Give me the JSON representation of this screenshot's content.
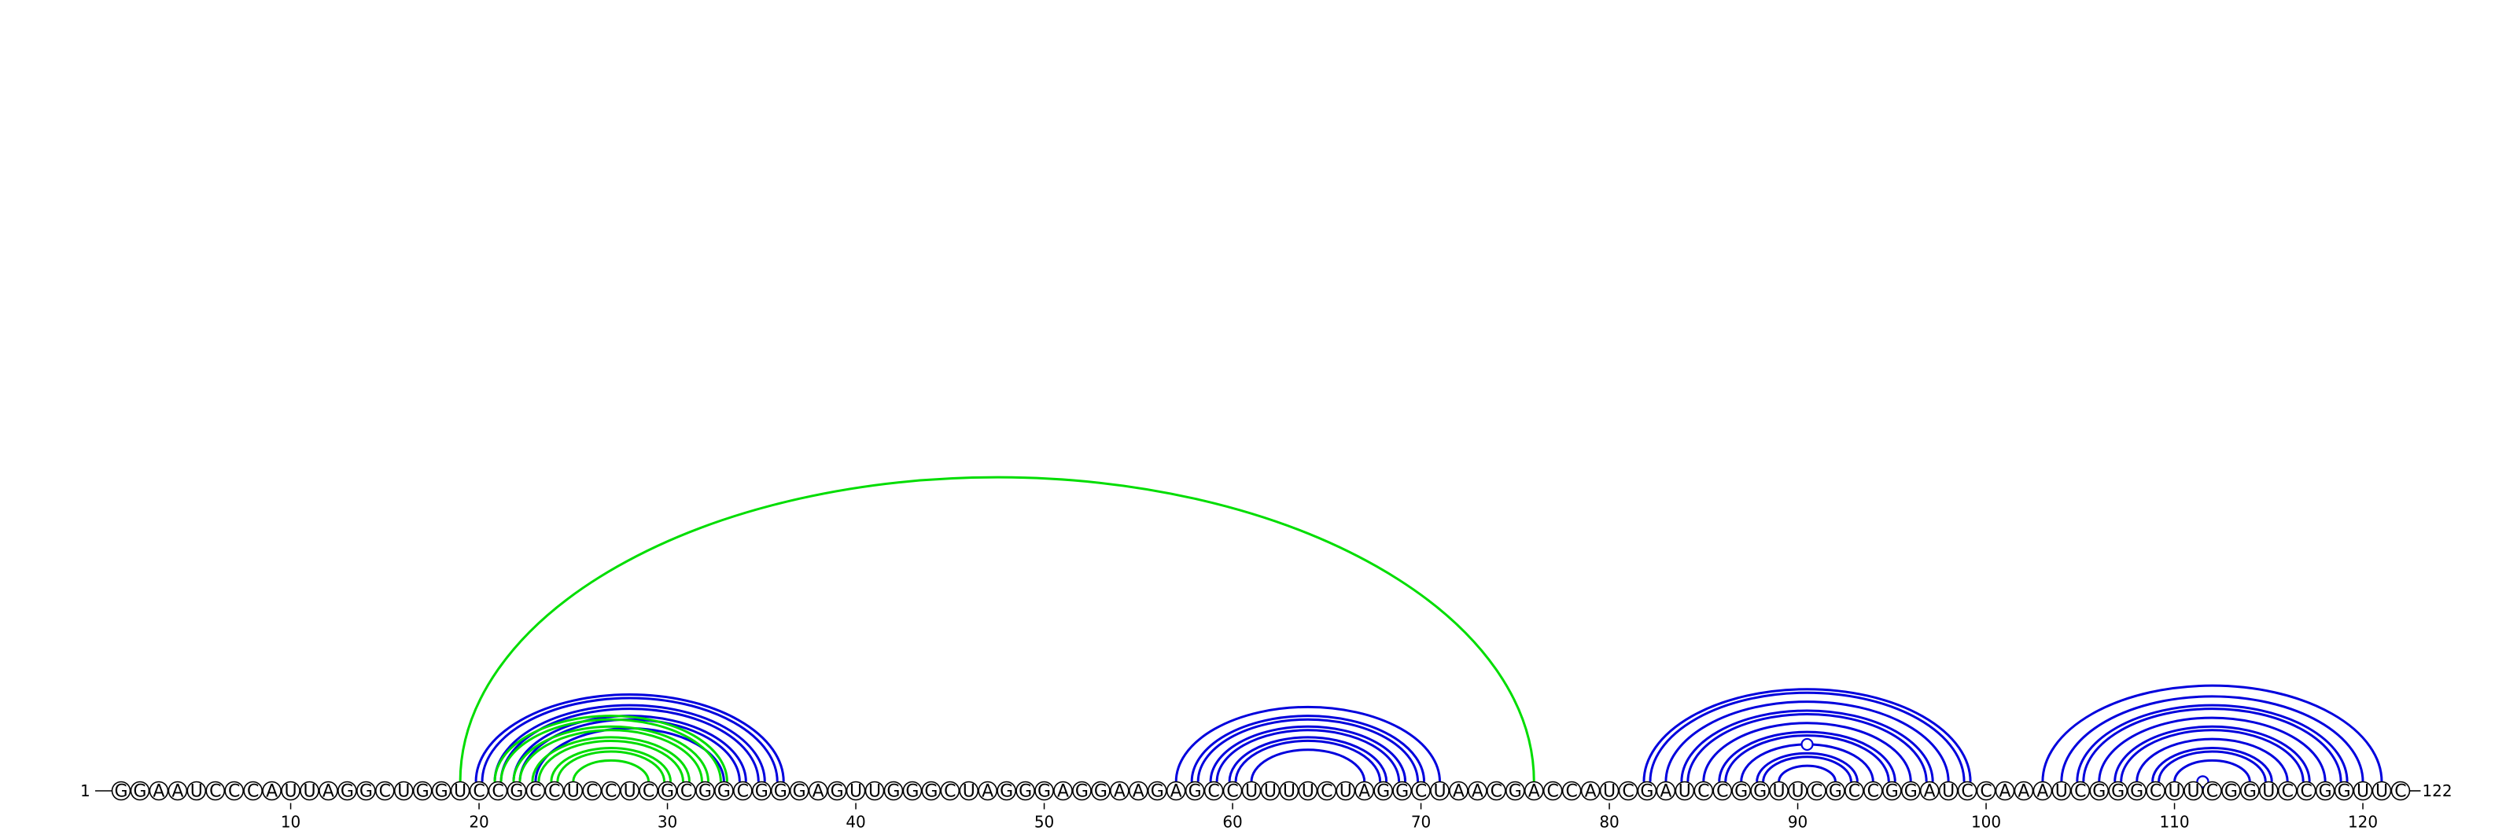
{
  "sequence": "GGAAUCCCAUUAGGCUGGUCCGCCUCCUCGCGGCGGGAGUUGGGCUAGGGAGGAAGAGCCUUUUCUAGGCUAACGACCAUCGAUCCGGUUCGCCGGAUCCAAAUCGGGCUUCGGUCCGGUUC",
  "start_label": "1",
  "end_label": "122",
  "tick_labels": [
    "10",
    "20",
    "30",
    "40",
    "50",
    "60",
    "70",
    "80",
    "90",
    "100",
    "110",
    "120"
  ],
  "colors": {
    "blue": "#0000dd",
    "green": "#00dd00"
  },
  "arcs": [
    {
      "i": 20,
      "j": 36,
      "color": "blue",
      "double": true
    },
    {
      "i": 21,
      "j": 35,
      "color": "blue",
      "double": true
    },
    {
      "i": 22,
      "j": 34,
      "color": "blue",
      "double": true
    },
    {
      "i": 23,
      "j": 33,
      "color": "blue",
      "double": false
    },
    {
      "i": 19,
      "j": 76,
      "color": "green",
      "double": false
    },
    {
      "i": 21,
      "j": 33,
      "color": "green",
      "double": true
    },
    {
      "i": 22,
      "j": 32,
      "color": "green",
      "double": true
    },
    {
      "i": 23,
      "j": 31,
      "color": "green",
      "double": true
    },
    {
      "i": 24,
      "j": 30,
      "color": "green",
      "double": true
    },
    {
      "i": 25,
      "j": 29,
      "color": "green",
      "double": false
    },
    {
      "i": 57,
      "j": 71,
      "color": "blue",
      "double": false
    },
    {
      "i": 58,
      "j": 70,
      "color": "blue",
      "double": true
    },
    {
      "i": 59,
      "j": 69,
      "color": "blue",
      "double": true
    },
    {
      "i": 60,
      "j": 68,
      "color": "blue",
      "double": true
    },
    {
      "i": 61,
      "j": 67,
      "color": "blue",
      "double": false
    },
    {
      "i": 82,
      "j": 99,
      "color": "blue",
      "double": true
    },
    {
      "i": 83,
      "j": 98,
      "color": "blue",
      "double": false
    },
    {
      "i": 84,
      "j": 97,
      "color": "blue",
      "double": true
    },
    {
      "i": 85,
      "j": 96,
      "color": "blue",
      "double": false
    },
    {
      "i": 86,
      "j": 95,
      "color": "blue",
      "double": true
    },
    {
      "i": 87,
      "j": 94,
      "color": "blue",
      "double": false
    },
    {
      "i": 88,
      "j": 93,
      "color": "blue",
      "double": true
    },
    {
      "i": 89,
      "j": 92,
      "color": "blue",
      "double": false
    },
    {
      "i": 103,
      "j": 121,
      "color": "blue",
      "double": false
    },
    {
      "i": 104,
      "j": 120,
      "color": "blue",
      "double": false
    },
    {
      "i": 105,
      "j": 119,
      "color": "blue",
      "double": true
    },
    {
      "i": 106,
      "j": 118,
      "color": "blue",
      "double": false
    },
    {
      "i": 107,
      "j": 117,
      "color": "blue",
      "double": true
    },
    {
      "i": 108,
      "j": 116,
      "color": "blue",
      "double": false
    },
    {
      "i": 109,
      "j": 115,
      "color": "blue",
      "double": true
    },
    {
      "i": 110,
      "j": 114,
      "color": "blue",
      "double": false
    }
  ],
  "markers": [
    {
      "nt": 90.5,
      "level": 0.25,
      "color": "blue"
    },
    {
      "nt": 111.5,
      "level": 0.25,
      "color": "blue"
    },
    {
      "nt": 111.5,
      "level": 0.5,
      "color": "blue"
    },
    {
      "nt": 111.5,
      "level": 1.0,
      "color": "blue"
    }
  ]
}
